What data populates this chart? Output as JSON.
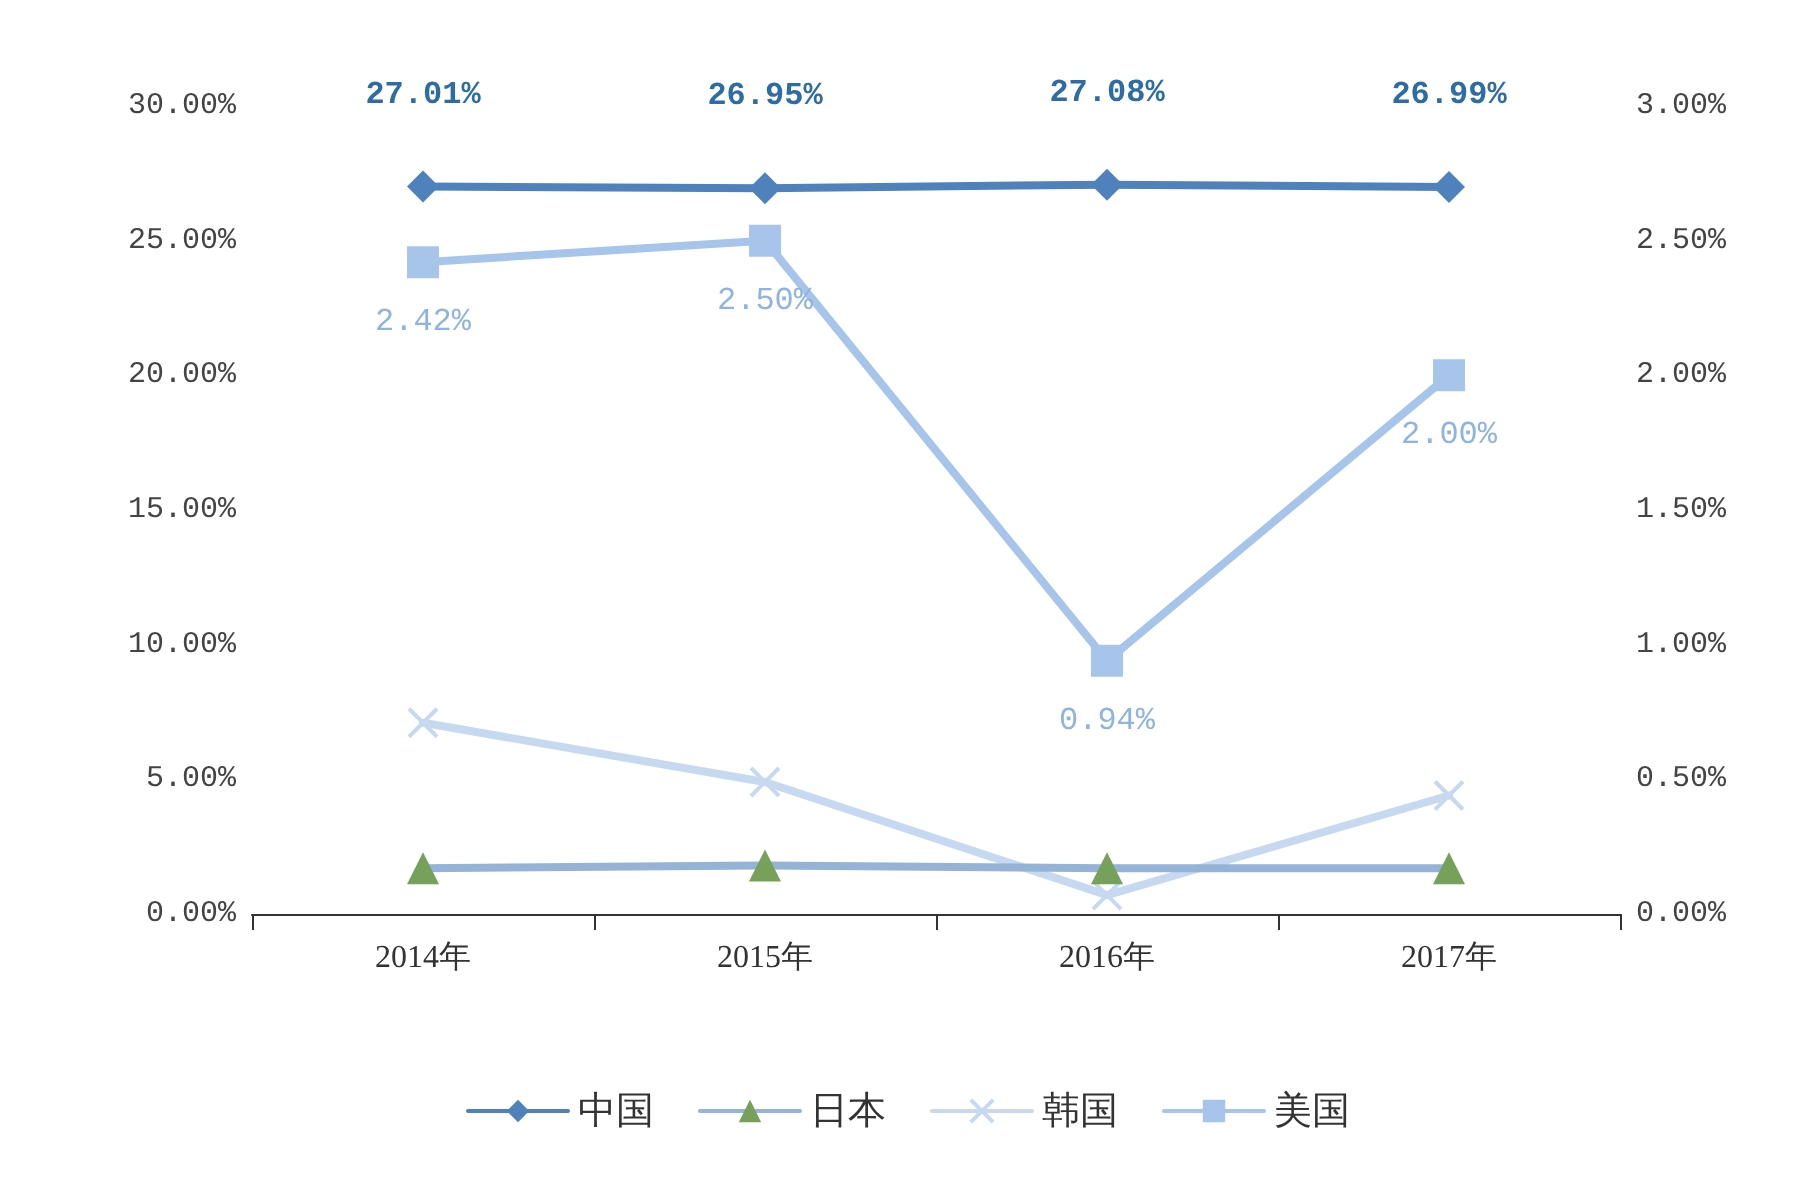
{
  "chart_data": {
    "type": "line",
    "categories": [
      "2014年",
      "2015年",
      "2016年",
      "2017年"
    ],
    "series": [
      {
        "name": "中国",
        "color": "#4f81bd",
        "marker": "diamond",
        "values": [
          27.01,
          26.95,
          27.08,
          26.99
        ],
        "value_labels": [
          "27.01%",
          "26.95%",
          "27.08%",
          "26.99%"
        ]
      },
      {
        "name": "日本",
        "color": "#95b3d7",
        "colors": [
          "#77a05a",
          "#77a05a",
          "#77a05a",
          "#77a05a"
        ],
        "marker": "triangle",
        "values": [
          1.7,
          1.8,
          1.7,
          1.7
        ]
      },
      {
        "name": "韩国",
        "color": "#c6d9f1",
        "marker": "cross",
        "values": [
          7.1,
          4.9,
          0.7,
          4.4
        ]
      },
      {
        "name": "美国",
        "color": "#a7c4ea",
        "marker": "square",
        "axis": "y2",
        "values": [
          2.42,
          2.5,
          0.94,
          2.0
        ],
        "value_labels": [
          "2.42%",
          "2.50%",
          "0.94%",
          "2.00%"
        ]
      }
    ],
    "ylim": [
      0,
      30
    ],
    "yticks": [
      {
        "value": 0,
        "label": "0.00%"
      },
      {
        "value": 5,
        "label": "5.00%"
      },
      {
        "value": 10,
        "label": "10.00%"
      },
      {
        "value": 15,
        "label": "15.00%"
      },
      {
        "value": 20,
        "label": "20.00%"
      },
      {
        "value": 25,
        "label": "25.00%"
      },
      {
        "value": 30,
        "label": "30.00%"
      }
    ],
    "y2lim": [
      0,
      3
    ],
    "y2ticks": [
      {
        "value": 0,
        "label": "0.00%"
      },
      {
        "value": 0.5,
        "label": "0.50%"
      },
      {
        "value": 1,
        "label": "1.00%"
      },
      {
        "value": 1.5,
        "label": "1.50%"
      },
      {
        "value": 2,
        "label": "2.00%"
      },
      {
        "value": 2.5,
        "label": "2.50%"
      },
      {
        "value": 3,
        "label": "3.00%"
      }
    ],
    "legend": "bottom",
    "grid": false
  }
}
